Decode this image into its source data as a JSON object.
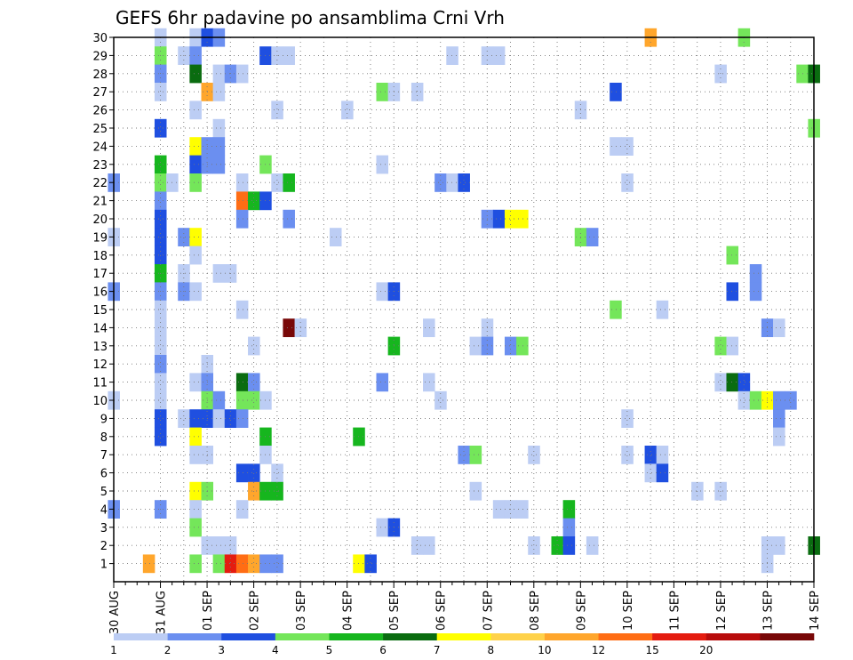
{
  "chart_data": {
    "type": "heatmap",
    "title": "GEFS 6hr padavine po ansamblima Crni Vrh",
    "xlabel": "",
    "ylabel": "",
    "x_ticks": [
      "30 AUG",
      "31 AUG",
      "01 SEP",
      "02 SEP",
      "03 SEP",
      "04 SEP",
      "05 SEP",
      "06 SEP",
      "07 SEP",
      "08 SEP",
      "09 SEP",
      "10 SEP",
      "11 SEP",
      "12 SEP",
      "13 SEP",
      "14 SEP"
    ],
    "x_steps_per_day": 4,
    "x_range": [
      0,
      60
    ],
    "y_ticks": [
      1,
      2,
      3,
      4,
      5,
      6,
      7,
      8,
      9,
      10,
      11,
      12,
      13,
      14,
      15,
      16,
      17,
      18,
      19,
      20,
      21,
      22,
      23,
      24,
      25,
      26,
      27,
      28,
      29,
      30
    ],
    "y_range": [
      0,
      30
    ],
    "grid": true,
    "color_bins": [
      {
        "color": "#bccdf4",
        "label": "1"
      },
      {
        "color": "#6b8ff0",
        "label": "2"
      },
      {
        "color": "#1f4fe0",
        "label": "3"
      },
      {
        "color": "#74e65a",
        "label": "4"
      },
      {
        "color": "#16b61e",
        "label": "5"
      },
      {
        "color": "#0a6c10",
        "label": "6"
      },
      {
        "color": "#ffff00",
        "label": "7"
      },
      {
        "color": "#ffd24a",
        "label": "8"
      },
      {
        "color": "#ffa62c",
        "label": "10"
      },
      {
        "color": "#ff6d14",
        "label": "12"
      },
      {
        "color": "#e41c10",
        "label": "15"
      },
      {
        "color": "#b80c0c",
        "label": "20"
      },
      {
        "color": "#780808",
        "label": ""
      }
    ],
    "cells": [
      [
        4,
        30,
        0
      ],
      [
        7,
        30,
        0
      ],
      [
        8,
        30,
        2
      ],
      [
        9,
        30,
        1
      ],
      [
        46,
        30,
        8
      ],
      [
        54,
        30,
        3
      ],
      [
        4,
        29,
        3
      ],
      [
        6,
        29,
        0
      ],
      [
        7,
        29,
        1
      ],
      [
        13,
        29,
        2
      ],
      [
        14,
        29,
        0
      ],
      [
        15,
        29,
        0
      ],
      [
        29,
        29,
        0
      ],
      [
        32,
        29,
        0
      ],
      [
        33,
        29,
        0
      ],
      [
        4,
        28,
        1
      ],
      [
        7,
        28,
        5
      ],
      [
        9,
        28,
        0
      ],
      [
        10,
        28,
        1
      ],
      [
        11,
        28,
        0
      ],
      [
        52,
        28,
        0
      ],
      [
        59,
        28,
        3
      ],
      [
        60,
        28,
        5
      ],
      [
        4,
        27,
        0
      ],
      [
        8,
        27,
        8
      ],
      [
        9,
        27,
        0
      ],
      [
        23,
        27,
        3
      ],
      [
        24,
        27,
        0
      ],
      [
        26,
        27,
        0
      ],
      [
        43,
        27,
        2
      ],
      [
        7,
        26,
        0
      ],
      [
        14,
        26,
        0
      ],
      [
        20,
        26,
        0
      ],
      [
        40,
        26,
        0
      ],
      [
        4,
        25,
        2
      ],
      [
        9,
        25,
        0
      ],
      [
        60,
        25,
        3
      ],
      [
        7,
        24,
        6
      ],
      [
        8,
        24,
        1
      ],
      [
        9,
        24,
        1
      ],
      [
        43,
        24,
        0
      ],
      [
        44,
        24,
        0
      ],
      [
        4,
        23,
        4
      ],
      [
        7,
        23,
        2
      ],
      [
        8,
        23,
        1
      ],
      [
        9,
        23,
        1
      ],
      [
        13,
        23,
        3
      ],
      [
        23,
        23,
        0
      ],
      [
        0,
        22,
        1
      ],
      [
        4,
        22,
        3
      ],
      [
        5,
        22,
        0
      ],
      [
        7,
        22,
        3
      ],
      [
        11,
        22,
        0
      ],
      [
        14,
        22,
        0
      ],
      [
        15,
        22,
        4
      ],
      [
        28,
        22,
        1
      ],
      [
        29,
        22,
        0
      ],
      [
        30,
        22,
        2
      ],
      [
        44,
        22,
        0
      ],
      [
        4,
        21,
        1
      ],
      [
        11,
        21,
        9
      ],
      [
        12,
        21,
        4
      ],
      [
        13,
        21,
        2
      ],
      [
        4,
        20,
        2
      ],
      [
        11,
        20,
        1
      ],
      [
        15,
        20,
        1
      ],
      [
        32,
        20,
        1
      ],
      [
        33,
        20,
        2
      ],
      [
        34,
        20,
        6
      ],
      [
        35,
        20,
        6
      ],
      [
        0,
        19,
        0
      ],
      [
        4,
        19,
        2
      ],
      [
        6,
        19,
        1
      ],
      [
        7,
        19,
        6
      ],
      [
        19,
        19,
        0
      ],
      [
        40,
        19,
        3
      ],
      [
        41,
        19,
        1
      ],
      [
        4,
        18,
        2
      ],
      [
        7,
        18,
        0
      ],
      [
        53,
        18,
        3
      ],
      [
        4,
        17,
        4
      ],
      [
        6,
        17,
        0
      ],
      [
        9,
        17,
        0
      ],
      [
        10,
        17,
        0
      ],
      [
        55,
        17,
        1
      ],
      [
        0,
        16,
        1
      ],
      [
        4,
        16,
        1
      ],
      [
        6,
        16,
        1
      ],
      [
        7,
        16,
        0
      ],
      [
        23,
        16,
        0
      ],
      [
        24,
        16,
        2
      ],
      [
        53,
        16,
        2
      ],
      [
        55,
        16,
        1
      ],
      [
        4,
        15,
        0
      ],
      [
        11,
        15,
        0
      ],
      [
        43,
        15,
        3
      ],
      [
        47,
        15,
        0
      ],
      [
        4,
        14,
        0
      ],
      [
        15,
        14,
        12
      ],
      [
        16,
        14,
        0
      ],
      [
        27,
        14,
        0
      ],
      [
        32,
        14,
        0
      ],
      [
        56,
        14,
        1
      ],
      [
        57,
        14,
        0
      ],
      [
        4,
        13,
        0
      ],
      [
        12,
        13,
        0
      ],
      [
        24,
        13,
        4
      ],
      [
        31,
        13,
        0
      ],
      [
        32,
        13,
        1
      ],
      [
        34,
        13,
        1
      ],
      [
        35,
        13,
        3
      ],
      [
        52,
        13,
        3
      ],
      [
        53,
        13,
        0
      ],
      [
        4,
        12,
        1
      ],
      [
        8,
        12,
        0
      ],
      [
        4,
        11,
        0
      ],
      [
        7,
        11,
        0
      ],
      [
        8,
        11,
        1
      ],
      [
        11,
        11,
        5
      ],
      [
        12,
        11,
        1
      ],
      [
        23,
        11,
        1
      ],
      [
        27,
        11,
        0
      ],
      [
        52,
        11,
        0
      ],
      [
        53,
        11,
        5
      ],
      [
        54,
        11,
        2
      ],
      [
        0,
        10,
        0
      ],
      [
        4,
        10,
        0
      ],
      [
        8,
        10,
        3
      ],
      [
        9,
        10,
        1
      ],
      [
        11,
        10,
        3
      ],
      [
        12,
        10,
        3
      ],
      [
        13,
        10,
        0
      ],
      [
        28,
        10,
        0
      ],
      [
        54,
        10,
        0
      ],
      [
        55,
        10,
        3
      ],
      [
        56,
        10,
        6
      ],
      [
        57,
        10,
        1
      ],
      [
        58,
        10,
        1
      ],
      [
        4,
        9,
        2
      ],
      [
        6,
        9,
        0
      ],
      [
        7,
        9,
        2
      ],
      [
        8,
        9,
        2
      ],
      [
        9,
        9,
        0
      ],
      [
        10,
        9,
        2
      ],
      [
        11,
        9,
        1
      ],
      [
        44,
        9,
        0
      ],
      [
        57,
        9,
        1
      ],
      [
        4,
        8,
        2
      ],
      [
        7,
        8,
        6
      ],
      [
        13,
        8,
        4
      ],
      [
        21,
        8,
        4
      ],
      [
        57,
        8,
        0
      ],
      [
        7,
        7,
        0
      ],
      [
        8,
        7,
        0
      ],
      [
        13,
        7,
        0
      ],
      [
        30,
        7,
        1
      ],
      [
        31,
        7,
        3
      ],
      [
        36,
        7,
        0
      ],
      [
        44,
        7,
        0
      ],
      [
        46,
        7,
        2
      ],
      [
        47,
        7,
        0
      ],
      [
        11,
        6,
        2
      ],
      [
        12,
        6,
        2
      ],
      [
        14,
        6,
        0
      ],
      [
        46,
        6,
        0
      ],
      [
        47,
        6,
        2
      ],
      [
        7,
        5,
        6
      ],
      [
        8,
        5,
        3
      ],
      [
        12,
        5,
        8
      ],
      [
        13,
        5,
        4
      ],
      [
        14,
        5,
        4
      ],
      [
        31,
        5,
        0
      ],
      [
        50,
        5,
        0
      ],
      [
        52,
        5,
        0
      ],
      [
        0,
        4,
        1
      ],
      [
        4,
        4,
        1
      ],
      [
        7,
        4,
        0
      ],
      [
        11,
        4,
        0
      ],
      [
        33,
        4,
        0
      ],
      [
        34,
        4,
        0
      ],
      [
        35,
        4,
        0
      ],
      [
        39,
        4,
        4
      ],
      [
        7,
        3,
        3
      ],
      [
        23,
        3,
        0
      ],
      [
        24,
        3,
        2
      ],
      [
        39,
        3,
        1
      ],
      [
        8,
        2,
        0
      ],
      [
        9,
        2,
        0
      ],
      [
        10,
        2,
        0
      ],
      [
        26,
        2,
        0
      ],
      [
        27,
        2,
        0
      ],
      [
        36,
        2,
        0
      ],
      [
        38,
        2,
        4
      ],
      [
        39,
        2,
        2
      ],
      [
        41,
        2,
        0
      ],
      [
        56,
        2,
        0
      ],
      [
        57,
        2,
        0
      ],
      [
        60,
        2,
        5
      ],
      [
        3,
        1,
        8
      ],
      [
        7,
        1,
        3
      ],
      [
        9,
        1,
        3
      ],
      [
        10,
        1,
        10
      ],
      [
        11,
        1,
        9
      ],
      [
        12,
        1,
        8
      ],
      [
        13,
        1,
        1
      ],
      [
        14,
        1,
        1
      ],
      [
        21,
        1,
        6
      ],
      [
        22,
        1,
        2
      ],
      [
        56,
        1,
        0
      ]
    ]
  }
}
